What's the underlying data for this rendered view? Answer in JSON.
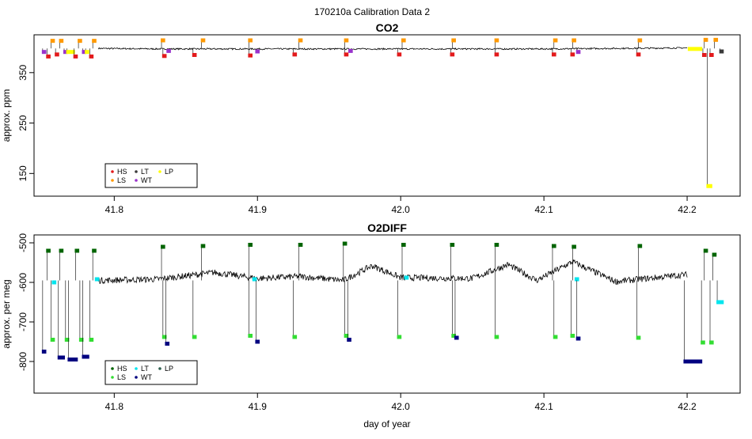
{
  "figure": {
    "title": "170210a   Calibration Data 2"
  },
  "chart_data": [
    {
      "type": "scatter",
      "title": "CO2",
      "xlabel": "",
      "ylabel": "approx. ppm",
      "xlim": [
        41.744,
        42.237
      ],
      "ylim": [
        105,
        425
      ],
      "x_ticks": [
        41.8,
        41.9,
        42.0,
        42.1,
        42.2
      ],
      "x_tick_labels": [
        "41.8",
        "41.9",
        "42.0",
        "42.1",
        "42.2"
      ],
      "y_ticks": [
        150,
        250,
        350
      ],
      "y_tick_labels": [
        "150",
        "250",
        "350"
      ],
      "legend": {
        "position": "bottom-left",
        "entries": [
          {
            "label": "HS",
            "color": "#e31a1c"
          },
          {
            "label": "LS",
            "color": "#ff9900"
          },
          {
            "label": "LT",
            "color": "#3a3a3a"
          },
          {
            "label": "WT",
            "color": "#9933cc"
          },
          {
            "label": "LP",
            "color": "#ffff00"
          }
        ]
      },
      "baseline": {
        "color": "#000000",
        "points": [
          [
            41.789,
            398
          ],
          [
            41.83,
            397
          ],
          [
            41.9,
            397
          ],
          [
            42.0,
            397
          ],
          [
            42.1,
            397
          ],
          [
            42.2,
            399
          ]
        ]
      },
      "segments": [
        {
          "x0": 41.75,
          "x1": 41.752,
          "y": 391,
          "color": "#9933cc"
        },
        {
          "x0": 41.753,
          "x1": 41.755,
          "y": 382,
          "color": "#e31a1c"
        },
        {
          "x0": 41.756,
          "x1": 41.758,
          "y": 413,
          "color": "#ff9900"
        },
        {
          "x0": 41.759,
          "x1": 41.761,
          "y": 386,
          "color": "#e31a1c"
        },
        {
          "x0": 41.762,
          "x1": 41.764,
          "y": 413,
          "color": "#ff9900"
        },
        {
          "x0": 41.765,
          "x1": 41.767,
          "y": 391,
          "color": "#9933cc"
        },
        {
          "x0": 41.767,
          "x1": 41.772,
          "y": 391,
          "color": "#ffff00"
        },
        {
          "x0": 41.772,
          "x1": 41.774,
          "y": 382,
          "color": "#e31a1c"
        },
        {
          "x0": 41.775,
          "x1": 41.777,
          "y": 413,
          "color": "#ff9900"
        },
        {
          "x0": 41.778,
          "x1": 41.78,
          "y": 391,
          "color": "#9933cc"
        },
        {
          "x0": 41.78,
          "x1": 41.782,
          "y": 391,
          "color": "#ffff00"
        },
        {
          "x0": 41.783,
          "x1": 41.785,
          "y": 382,
          "color": "#e31a1c"
        },
        {
          "x0": 41.785,
          "x1": 41.787,
          "y": 413,
          "color": "#ff9900"
        },
        {
          "x0": 41.834,
          "x1": 41.836,
          "y": 383,
          "color": "#e31a1c"
        },
        {
          "x0": 41.833,
          "x1": 41.835,
          "y": 414,
          "color": "#ff9900"
        },
        {
          "x0": 41.837,
          "x1": 41.839,
          "y": 393,
          "color": "#9933cc"
        },
        {
          "x0": 41.855,
          "x1": 41.857,
          "y": 385,
          "color": "#e31a1c"
        },
        {
          "x0": 41.861,
          "x1": 41.863,
          "y": 414,
          "color": "#ff9900"
        },
        {
          "x0": 41.894,
          "x1": 41.896,
          "y": 384,
          "color": "#e31a1c"
        },
        {
          "x0": 41.894,
          "x1": 41.896,
          "y": 414,
          "color": "#ff9900"
        },
        {
          "x0": 41.899,
          "x1": 41.901,
          "y": 392,
          "color": "#9933cc"
        },
        {
          "x0": 41.925,
          "x1": 41.927,
          "y": 386,
          "color": "#e31a1c"
        },
        {
          "x0": 41.929,
          "x1": 41.931,
          "y": 414,
          "color": "#ff9900"
        },
        {
          "x0": 41.961,
          "x1": 41.963,
          "y": 386,
          "color": "#e31a1c"
        },
        {
          "x0": 41.961,
          "x1": 41.963,
          "y": 414,
          "color": "#ff9900"
        },
        {
          "x0": 41.964,
          "x1": 41.966,
          "y": 393,
          "color": "#9933cc"
        },
        {
          "x0": 41.998,
          "x1": 42.0,
          "y": 386,
          "color": "#e31a1c"
        },
        {
          "x0": 42.001,
          "x1": 42.003,
          "y": 414,
          "color": "#ff9900"
        },
        {
          "x0": 42.035,
          "x1": 42.037,
          "y": 386,
          "color": "#e31a1c"
        },
        {
          "x0": 42.036,
          "x1": 42.038,
          "y": 414,
          "color": "#ff9900"
        },
        {
          "x0": 42.066,
          "x1": 42.068,
          "y": 386,
          "color": "#e31a1c"
        },
        {
          "x0": 42.066,
          "x1": 42.068,
          "y": 414,
          "color": "#ff9900"
        },
        {
          "x0": 42.106,
          "x1": 42.108,
          "y": 386,
          "color": "#e31a1c"
        },
        {
          "x0": 42.107,
          "x1": 42.109,
          "y": 414,
          "color": "#ff9900"
        },
        {
          "x0": 42.119,
          "x1": 42.121,
          "y": 386,
          "color": "#e31a1c"
        },
        {
          "x0": 42.12,
          "x1": 42.122,
          "y": 414,
          "color": "#ff9900"
        },
        {
          "x0": 42.123,
          "x1": 42.125,
          "y": 391,
          "color": "#9933cc"
        },
        {
          "x0": 42.165,
          "x1": 42.167,
          "y": 386,
          "color": "#e31a1c"
        },
        {
          "x0": 42.166,
          "x1": 42.168,
          "y": 414,
          "color": "#ff9900"
        },
        {
          "x0": 42.201,
          "x1": 42.21,
          "y": 397,
          "color": "#ffff00"
        },
        {
          "x0": 42.211,
          "x1": 42.213,
          "y": 385,
          "color": "#e31a1c"
        },
        {
          "x0": 42.212,
          "x1": 42.214,
          "y": 415,
          "color": "#ff9900"
        },
        {
          "x0": 42.216,
          "x1": 42.218,
          "y": 385,
          "color": "#e31a1c"
        },
        {
          "x0": 42.219,
          "x1": 42.221,
          "y": 415,
          "color": "#ff9900"
        },
        {
          "x0": 42.223,
          "x1": 42.225,
          "y": 392,
          "color": "#3a3a3a"
        },
        {
          "x0": 42.214,
          "x1": 42.217,
          "y": 125,
          "color": "#ffff00"
        }
      ]
    },
    {
      "type": "scatter",
      "title": "O2DIFF",
      "xlabel": "day of year",
      "ylabel": "approx. per meg",
      "xlim": [
        41.744,
        42.237
      ],
      "ylim": [
        -880,
        -480
      ],
      "x_ticks": [
        41.8,
        41.9,
        42.0,
        42.1,
        42.2
      ],
      "x_tick_labels": [
        "41.8",
        "41.9",
        "42.0",
        "42.1",
        "42.2"
      ],
      "y_ticks": [
        -800,
        -700,
        -600,
        -500
      ],
      "y_tick_labels": [
        "-800",
        "-700",
        "-600",
        "-500"
      ],
      "legend": {
        "position": "bottom-left",
        "entries": [
          {
            "label": "HS",
            "color": "#006400"
          },
          {
            "label": "LS",
            "color": "#33dd33"
          },
          {
            "label": "LT",
            "color": "#00e5ee"
          },
          {
            "label": "WT",
            "color": "#000080"
          },
          {
            "label": "LP",
            "color": "#2e5e4e"
          }
        ]
      },
      "baseline": {
        "color": "#000000",
        "points": [
          [
            41.789,
            -595
          ],
          [
            41.83,
            -592
          ],
          [
            41.87,
            -575
          ],
          [
            41.9,
            -590
          ],
          [
            41.93,
            -585
          ],
          [
            41.96,
            -595
          ],
          [
            41.98,
            -558
          ],
          [
            42.0,
            -588
          ],
          [
            42.05,
            -590
          ],
          [
            42.075,
            -555
          ],
          [
            42.095,
            -595
          ],
          [
            42.12,
            -548
          ],
          [
            42.15,
            -598
          ],
          [
            42.2,
            -580
          ]
        ]
      },
      "segments": [
        {
          "x0": 41.75,
          "x1": 41.752,
          "y": -775,
          "color": "#000080"
        },
        {
          "x0": 41.753,
          "x1": 41.755,
          "y": -520,
          "color": "#006400"
        },
        {
          "x0": 41.756,
          "x1": 41.758,
          "y": -745,
          "color": "#33dd33"
        },
        {
          "x0": 41.757,
          "x1": 41.759,
          "y": -600,
          "color": "#00e5ee"
        },
        {
          "x0": 41.761,
          "x1": 41.765,
          "y": -790,
          "color": "#000080"
        },
        {
          "x0": 41.762,
          "x1": 41.764,
          "y": -520,
          "color": "#006400"
        },
        {
          "x0": 41.766,
          "x1": 41.768,
          "y": -745,
          "color": "#33dd33"
        },
        {
          "x0": 41.768,
          "x1": 41.774,
          "y": -795,
          "color": "#000080"
        },
        {
          "x0": 41.773,
          "x1": 41.775,
          "y": -520,
          "color": "#006400"
        },
        {
          "x0": 41.776,
          "x1": 41.778,
          "y": -745,
          "color": "#33dd33"
        },
        {
          "x0": 41.778,
          "x1": 41.782,
          "y": -788,
          "color": "#000080"
        },
        {
          "x0": 41.783,
          "x1": 41.785,
          "y": -745,
          "color": "#33dd33"
        },
        {
          "x0": 41.785,
          "x1": 41.787,
          "y": -520,
          "color": "#006400"
        },
        {
          "x0": 41.787,
          "x1": 41.789,
          "y": -592,
          "color": "#00e5ee"
        },
        {
          "x0": 41.833,
          "x1": 41.835,
          "y": -510,
          "color": "#006400"
        },
        {
          "x0": 41.834,
          "x1": 41.836,
          "y": -738,
          "color": "#33dd33"
        },
        {
          "x0": 41.836,
          "x1": 41.838,
          "y": -755,
          "color": "#000080"
        },
        {
          "x0": 41.855,
          "x1": 41.857,
          "y": -738,
          "color": "#33dd33"
        },
        {
          "x0": 41.861,
          "x1": 41.863,
          "y": -508,
          "color": "#006400"
        },
        {
          "x0": 41.894,
          "x1": 41.896,
          "y": -505,
          "color": "#006400"
        },
        {
          "x0": 41.894,
          "x1": 41.896,
          "y": -735,
          "color": "#33dd33"
        },
        {
          "x0": 41.897,
          "x1": 41.899,
          "y": -592,
          "color": "#00e5ee"
        },
        {
          "x0": 41.899,
          "x1": 41.901,
          "y": -750,
          "color": "#000080"
        },
        {
          "x0": 41.925,
          "x1": 41.927,
          "y": -738,
          "color": "#33dd33"
        },
        {
          "x0": 41.929,
          "x1": 41.931,
          "y": -505,
          "color": "#006400"
        },
        {
          "x0": 41.96,
          "x1": 41.962,
          "y": -502,
          "color": "#006400"
        },
        {
          "x0": 41.961,
          "x1": 41.963,
          "y": -735,
          "color": "#33dd33"
        },
        {
          "x0": 41.963,
          "x1": 41.965,
          "y": -745,
          "color": "#000080"
        },
        {
          "x0": 41.998,
          "x1": 42.0,
          "y": -738,
          "color": "#33dd33"
        },
        {
          "x0": 42.001,
          "x1": 42.003,
          "y": -505,
          "color": "#006400"
        },
        {
          "x0": 42.003,
          "x1": 42.005,
          "y": -588,
          "color": "#00e5ee"
        },
        {
          "x0": 42.035,
          "x1": 42.037,
          "y": -505,
          "color": "#006400"
        },
        {
          "x0": 42.036,
          "x1": 42.038,
          "y": -735,
          "color": "#33dd33"
        },
        {
          "x0": 42.038,
          "x1": 42.04,
          "y": -740,
          "color": "#000080"
        },
        {
          "x0": 42.066,
          "x1": 42.068,
          "y": -738,
          "color": "#33dd33"
        },
        {
          "x0": 42.066,
          "x1": 42.068,
          "y": -505,
          "color": "#006400"
        },
        {
          "x0": 42.106,
          "x1": 42.108,
          "y": -508,
          "color": "#006400"
        },
        {
          "x0": 42.107,
          "x1": 42.109,
          "y": -738,
          "color": "#33dd33"
        },
        {
          "x0": 42.119,
          "x1": 42.121,
          "y": -735,
          "color": "#33dd33"
        },
        {
          "x0": 42.12,
          "x1": 42.122,
          "y": -510,
          "color": "#006400"
        },
        {
          "x0": 42.122,
          "x1": 42.124,
          "y": -592,
          "color": "#00e5ee"
        },
        {
          "x0": 42.123,
          "x1": 42.125,
          "y": -742,
          "color": "#000080"
        },
        {
          "x0": 42.165,
          "x1": 42.167,
          "y": -740,
          "color": "#33dd33"
        },
        {
          "x0": 42.166,
          "x1": 42.168,
          "y": -508,
          "color": "#006400"
        },
        {
          "x0": 42.198,
          "x1": 42.21,
          "y": -800,
          "color": "#000080"
        },
        {
          "x0": 42.21,
          "x1": 42.212,
          "y": -752,
          "color": "#33dd33"
        },
        {
          "x0": 42.212,
          "x1": 42.214,
          "y": -520,
          "color": "#006400"
        },
        {
          "x0": 42.216,
          "x1": 42.218,
          "y": -752,
          "color": "#33dd33"
        },
        {
          "x0": 42.218,
          "x1": 42.22,
          "y": -530,
          "color": "#006400"
        },
        {
          "x0": 42.221,
          "x1": 42.225,
          "y": -650,
          "color": "#00e5ee"
        }
      ]
    }
  ]
}
